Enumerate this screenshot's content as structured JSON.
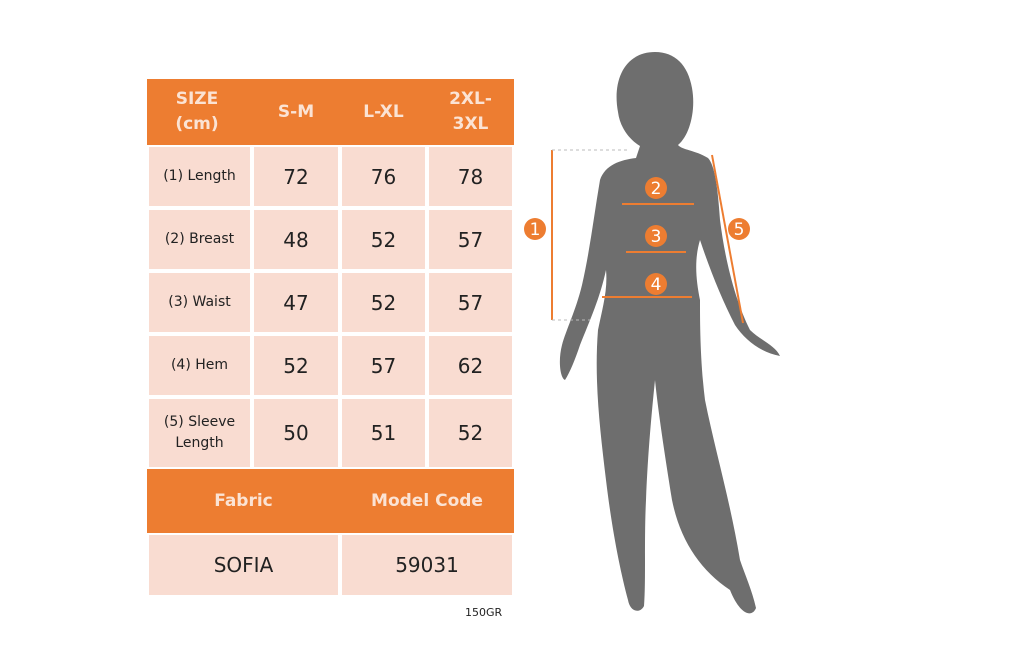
{
  "table": {
    "header": [
      "SIZE (cm)",
      "S-M",
      "L-XL",
      "2XL-3XL"
    ],
    "rows": [
      {
        "label": "(1) Length",
        "values": [
          "72",
          "76",
          "78"
        ]
      },
      {
        "label": "(2) Breast",
        "values": [
          "48",
          "52",
          "57"
        ]
      },
      {
        "label": "(3) Waist",
        "values": [
          "47",
          "52",
          "57"
        ]
      },
      {
        "label": "(4) Hem",
        "values": [
          "52",
          "57",
          "62"
        ]
      },
      {
        "label": "(5) Sleeve Length",
        "values": [
          "50",
          "51",
          "52"
        ]
      }
    ],
    "footer_header": [
      "Fabric",
      "Model Code"
    ],
    "footer_values": [
      "SOFIA",
      "59031"
    ]
  },
  "note": "150GR",
  "figure": {
    "markers": [
      "1",
      "2",
      "3",
      "4",
      "5"
    ],
    "accent": "#ED7D31",
    "silhouette": "#6E6E6E"
  }
}
